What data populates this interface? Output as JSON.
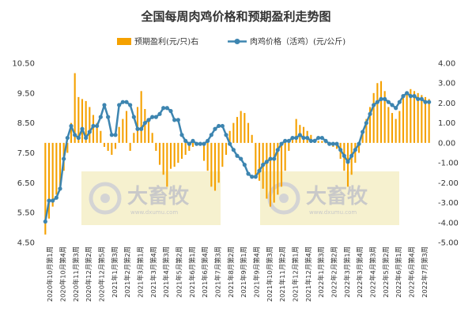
{
  "chart_data": {
    "type": "bar+line",
    "title": "全国每周肉鸡价格和预期盈利走势图",
    "legend": {
      "placement": "top"
    },
    "watermark": {
      "text": "大畜牧",
      "sub": "www.dxumu.com"
    },
    "colors": {
      "bar": "#f5a100",
      "line": "#3d85b0"
    },
    "left_axis": {
      "range": [
        4.5,
        10.5
      ],
      "ticks": [
        "4.50",
        "5.50",
        "6.50",
        "7.50",
        "8.50",
        "9.50",
        "10.50"
      ]
    },
    "right_axis": {
      "range": [
        -5,
        4
      ],
      "ticks": [
        "-5.00",
        "-4.00",
        "-3.00",
        "-2.00",
        "-1.00",
        "0.00",
        "1.00",
        "2.00",
        "3.00",
        "4.00"
      ]
    },
    "x_labels": [
      "2020年10月第1周",
      "2020年10月第4周",
      "2020年11月第3周",
      "2020年12月第2周",
      "2020年12月第5周",
      "2021年1月第3周",
      "2021年2月第2周",
      "2021年3月第1周",
      "2021年3月第4周",
      "2021年4月第3周",
      "2021年5月第2周",
      "2021年6月第1周",
      "2021年6月第4周",
      "2021年7月第3周",
      "2021年8月第2周",
      "2021年9月第1周",
      "2021年9月第4周",
      "2021年10月第3周",
      "2021年11月第2周",
      "2021年12月第1周",
      "2021年12月第4周",
      "2022年1月第3周",
      "2022年2月第2周",
      "2022年3月第1周",
      "2022年3月第4周",
      "2022年4月第3周",
      "2022年5月第2周",
      "2022年6月第1周",
      "2022年6月第4周",
      "2022年7月第3周"
    ],
    "series": [
      {
        "name": "预期盈利(元/只)右",
        "type": "bar",
        "axis": "right",
        "values": [
          -4.6,
          -3.8,
          -3.2,
          -2.6,
          -2.2,
          -1.4,
          -0.5,
          1.0,
          3.5,
          2.3,
          2.2,
          2.1,
          1.8,
          1.4,
          1.0,
          0.6,
          -0.2,
          -0.4,
          -0.6,
          -0.3,
          0.8,
          1.2,
          1.6,
          -0.4,
          0.5,
          1.8,
          2.6,
          1.7,
          1.1,
          0.5,
          -0.4,
          -1.1,
          -1.6,
          -2.2,
          -1.3,
          -1.2,
          -1.0,
          -0.8,
          -0.6,
          -0.4,
          -0.2,
          -0.1,
          -0.1,
          -0.9,
          -1.4,
          -2.2,
          -2.4,
          -2.0,
          -1.2,
          -0.6,
          0.6,
          1.0,
          1.3,
          1.6,
          1.5,
          1.0,
          0.4,
          -1.6,
          -1.9,
          -2.3,
          -2.8,
          -3.2,
          -3.0,
          -2.6,
          -2.2,
          -1.4,
          -0.4,
          0.2,
          1.2,
          0.9,
          0.8,
          0.6,
          0.4,
          0.2,
          0.1,
          0.1,
          0.0,
          -0.1,
          -0.2,
          -0.3,
          -0.8,
          -1.4,
          -2.2,
          -1.6,
          -1.0,
          -0.5,
          0.5,
          1.2,
          1.8,
          2.5,
          3.0,
          3.1,
          2.6,
          1.8,
          1.5,
          1.2,
          1.6,
          2.3,
          2.5,
          2.7,
          2.6,
          2.5,
          2.4,
          2.3,
          2.2
        ]
      },
      {
        "name": "肉鸡价格（活鸡）(元/公斤)",
        "type": "line",
        "axis": "left",
        "values": [
          5.2,
          5.9,
          5.9,
          6.0,
          6.3,
          7.3,
          8.0,
          8.4,
          8.1,
          8.0,
          8.3,
          8.0,
          8.2,
          8.4,
          8.4,
          8.7,
          9.1,
          8.7,
          8.1,
          8.1,
          9.1,
          9.2,
          9.2,
          9.1,
          8.7,
          8.3,
          8.3,
          8.5,
          8.6,
          8.7,
          8.7,
          8.8,
          9.0,
          9.0,
          8.9,
          8.6,
          8.6,
          8.1,
          7.9,
          7.8,
          7.9,
          7.8,
          7.8,
          7.8,
          7.9,
          8.1,
          8.3,
          8.4,
          8.4,
          8.1,
          7.8,
          7.6,
          7.4,
          7.3,
          7.1,
          6.8,
          6.7,
          6.7,
          6.9,
          7.1,
          7.2,
          7.3,
          7.3,
          7.6,
          7.8,
          7.9,
          7.9,
          8.0,
          8.0,
          8.1,
          8.0,
          8.0,
          7.9,
          7.9,
          8.0,
          8.0,
          7.9,
          7.8,
          7.8,
          7.8,
          7.6,
          7.4,
          7.2,
          7.4,
          7.6,
          7.8,
          8.2,
          8.5,
          8.8,
          9.1,
          9.2,
          9.3,
          9.3,
          9.2,
          9.1,
          9.0,
          9.2,
          9.4,
          9.5,
          9.4,
          9.4,
          9.3,
          9.3,
          9.2,
          9.2
        ]
      }
    ]
  }
}
